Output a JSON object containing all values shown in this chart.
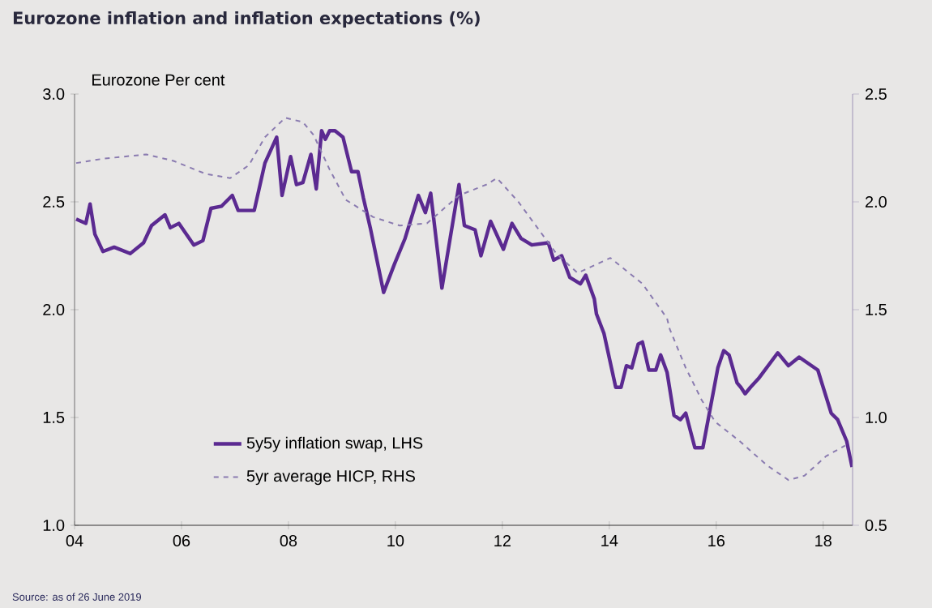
{
  "chart_data": {
    "type": "line",
    "title": "Eurozone inflation and inflation expectations (%)",
    "ylabel": "Eurozone Per cent",
    "annotations": [
      "Source: as of 26 June 2019"
    ],
    "xlim": [
      2004,
      2018.55
    ],
    "xticks": [
      {
        "value": 2004,
        "label": "04"
      },
      {
        "value": 2006,
        "label": "06"
      },
      {
        "value": 2008,
        "label": "08"
      },
      {
        "value": 2010,
        "label": "10"
      },
      {
        "value": 2012,
        "label": "12"
      },
      {
        "value": 2014,
        "label": "14"
      },
      {
        "value": 2016,
        "label": "16"
      },
      {
        "value": 2018,
        "label": "18"
      }
    ],
    "ylim": [
      1,
      3
    ],
    "yticks": [
      {
        "value": 1,
        "label": "1.0"
      },
      {
        "value": 1.5,
        "label": "1.5"
      },
      {
        "value": 2,
        "label": "2.0"
      },
      {
        "value": 2.5,
        "label": "2.5"
      },
      {
        "value": 3,
        "label": "3.0"
      }
    ],
    "y2lim": [
      0.5,
      2.5
    ],
    "y2ticks": [
      {
        "value": 0.5,
        "label": "0.5"
      },
      {
        "value": 1,
        "label": "1.0"
      },
      {
        "value": 1.5,
        "label": "1.5"
      },
      {
        "value": 2,
        "label": "2.0"
      },
      {
        "value": 2.5,
        "label": "2.5"
      }
    ],
    "legend": "bottom left",
    "series": [
      {
        "name": "5y5y inflation swap, LHS",
        "color": "#5b2a91",
        "line_style": "solid",
        "x": [
          2004.03,
          2004.21,
          2004.29,
          2004.38,
          2004.53,
          2004.74,
          2005.04,
          2005.29,
          2005.44,
          2005.69,
          2005.79,
          2005.95,
          2006.23,
          2006.4,
          2006.55,
          2006.75,
          2006.95,
          2007.06,
          2007.36,
          2007.56,
          2007.78,
          2007.88,
          2008.04,
          2008.15,
          2008.27,
          2008.42,
          2008.52,
          2008.62,
          2008.69,
          2008.77,
          2008.87,
          2009.02,
          2009.18,
          2009.3,
          2009.4,
          2009.53,
          2009.78,
          2009.98,
          2010.18,
          2010.43,
          2010.56,
          2010.66,
          2010.87,
          2011.19,
          2011.29,
          2011.49,
          2011.6,
          2011.78,
          2012.02,
          2012.18,
          2012.35,
          2012.55,
          2012.86,
          2012.96,
          2013.11,
          2013.26,
          2013.46,
          2013.56,
          2013.72,
          2013.76,
          2013.9,
          2014.12,
          2014.22,
          2014.32,
          2014.42,
          2014.54,
          2014.62,
          2014.74,
          2014.87,
          2014.96,
          2015.08,
          2015.21,
          2015.33,
          2015.43,
          2015.6,
          2015.75,
          2016.03,
          2016.14,
          2016.24,
          2016.39,
          2016.46,
          2016.54,
          2016.64,
          2016.79,
          2017.15,
          2017.35,
          2017.55,
          2017.9,
          2018.15,
          2018.27,
          2018.44,
          2018.54
        ],
        "values": [
          2.42,
          2.4,
          2.49,
          2.35,
          2.27,
          2.29,
          2.26,
          2.31,
          2.39,
          2.44,
          2.38,
          2.4,
          2.3,
          2.32,
          2.47,
          2.48,
          2.53,
          2.46,
          2.46,
          2.68,
          2.8,
          2.53,
          2.71,
          2.58,
          2.59,
          2.72,
          2.56,
          2.83,
          2.79,
          2.83,
          2.83,
          2.8,
          2.64,
          2.64,
          2.52,
          2.38,
          2.08,
          2.21,
          2.33,
          2.53,
          2.45,
          2.54,
          2.1,
          2.58,
          2.39,
          2.37,
          2.25,
          2.41,
          2.28,
          2.4,
          2.33,
          2.3,
          2.31,
          2.23,
          2.25,
          2.15,
          2.12,
          2.16,
          2.05,
          1.98,
          1.89,
          1.64,
          1.64,
          1.74,
          1.73,
          1.84,
          1.85,
          1.72,
          1.72,
          1.79,
          1.71,
          1.51,
          1.49,
          1.52,
          1.36,
          1.36,
          1.73,
          1.81,
          1.79,
          1.66,
          1.64,
          1.61,
          1.64,
          1.68,
          1.8,
          1.74,
          1.78,
          1.72,
          1.52,
          1.49,
          1.39,
          1.27
        ]
      },
      {
        "name": "5yr average HICP, RHS",
        "color": "#8a7bb0",
        "line_style": "dashed",
        "axis": "y2",
        "x": [
          2004.03,
          2004.53,
          2005.34,
          2005.85,
          2006.45,
          2006.91,
          2007.26,
          2007.56,
          2007.94,
          2008.27,
          2008.47,
          2008.77,
          2009.07,
          2009.58,
          2010.08,
          2010.59,
          2011.19,
          2011.7,
          2011.9,
          2012.3,
          2013.01,
          2013.41,
          2014.02,
          2014.62,
          2015.08,
          2015.13,
          2015.43,
          2015.73,
          2015.98,
          2016.44,
          2016.94,
          2017.35,
          2017.65,
          2018.05,
          2018.41
        ],
        "values": [
          2.18,
          2.2,
          2.22,
          2.19,
          2.13,
          2.11,
          2.17,
          2.3,
          2.39,
          2.37,
          2.31,
          2.15,
          2.01,
          1.93,
          1.89,
          1.9,
          2.03,
          2.08,
          2.11,
          2.0,
          1.76,
          1.67,
          1.74,
          1.62,
          1.46,
          1.41,
          1.23,
          1.08,
          0.98,
          0.89,
          0.78,
          0.71,
          0.73,
          0.82,
          0.87
        ]
      }
    ]
  }
}
